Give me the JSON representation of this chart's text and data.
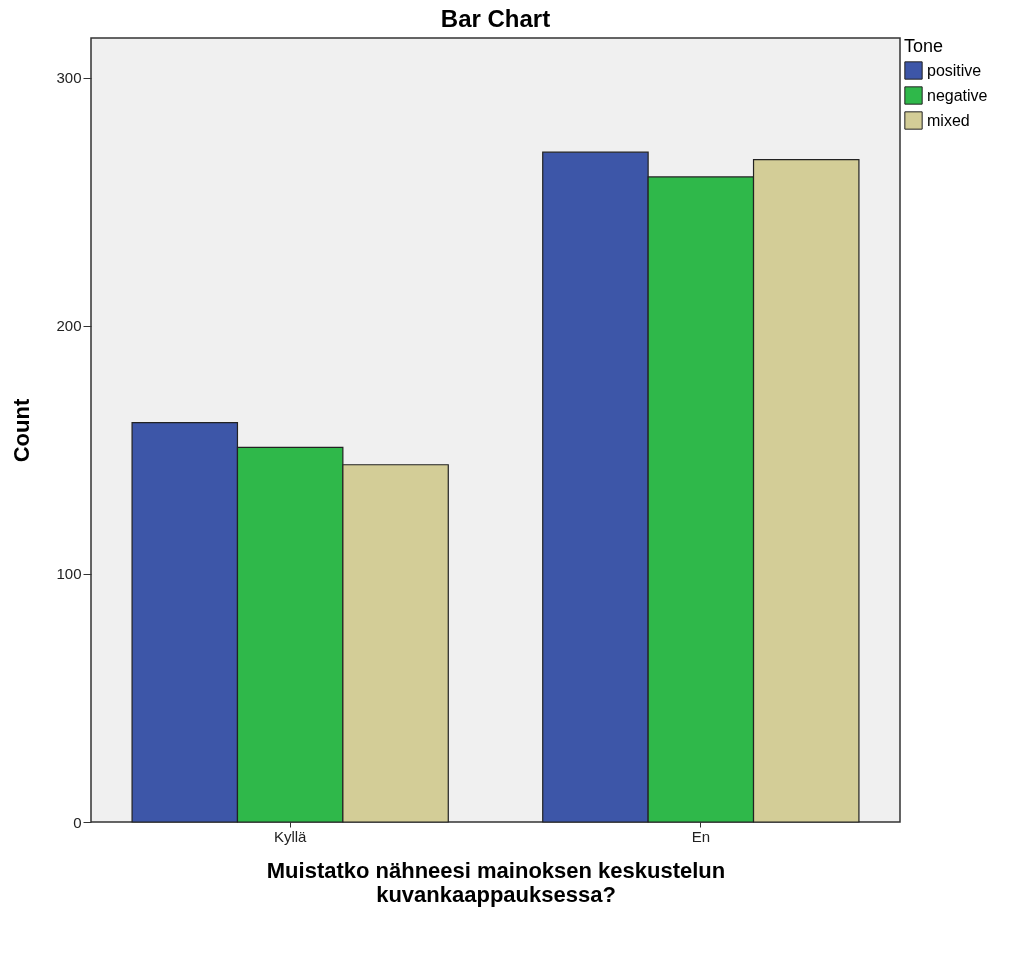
{
  "chart_data": {
    "type": "bar",
    "title": "Bar Chart",
    "xlabel": "Muistatko nähneesi mainoksen keskustelun kuvankaappauksessa?",
    "ylabel": "Count",
    "legend_title": "Tone",
    "categories": [
      "Kyllä",
      "En"
    ],
    "series": [
      {
        "name": "positive",
        "color": "#3d56a8",
        "values": [
          161,
          270
        ]
      },
      {
        "name": "negative",
        "color": "#2fb84a",
        "values": [
          151,
          260
        ]
      },
      {
        "name": "mixed",
        "color": "#d3cd97",
        "values": [
          144,
          267
        ]
      }
    ],
    "ylim": [
      0,
      316
    ],
    "yticks": [
      0,
      100,
      200,
      300
    ],
    "grid": false,
    "legend": "top right"
  }
}
